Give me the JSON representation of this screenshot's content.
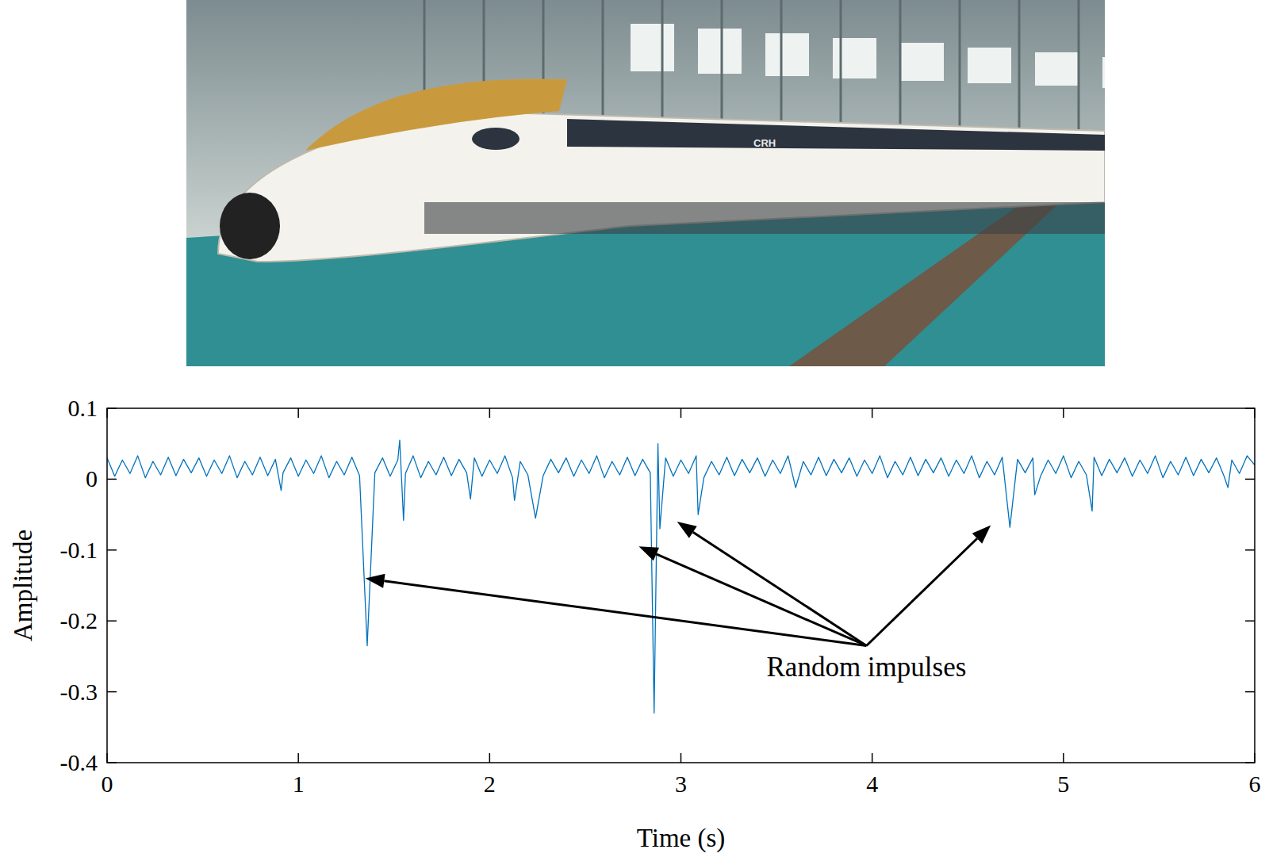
{
  "photo": {
    "logo": "CRH"
  },
  "chart_data": {
    "type": "line",
    "color": "#0072bd",
    "x_label": "Time (s)",
    "y_label": "Amplitude",
    "xlim": [
      0,
      6
    ],
    "ylim": [
      -0.4,
      0.1
    ],
    "xticks": [
      0,
      1,
      2,
      3,
      4,
      5,
      6
    ],
    "yticks": [
      -0.4,
      -0.3,
      -0.2,
      -0.1,
      0,
      0.1
    ],
    "grid": false,
    "annotations": [
      {
        "text": "Random impulses",
        "x": 3.97,
        "y": -0.245,
        "arrow_from": [
          3.97,
          -0.235
        ],
        "arrows": [
          [
            1.35,
            -0.14
          ],
          [
            2.78,
            -0.095
          ],
          [
            2.98,
            -0.06
          ],
          [
            4.62,
            -0.065
          ]
        ]
      }
    ],
    "x": [
      0,
      0.04,
      0.08,
      0.12,
      0.16,
      0.2,
      0.24,
      0.28,
      0.32,
      0.36,
      0.4,
      0.44,
      0.48,
      0.52,
      0.56,
      0.6,
      0.64,
      0.68,
      0.72,
      0.76,
      0.8,
      0.84,
      0.88,
      0.91,
      0.92,
      0.96,
      1.0,
      1.04,
      1.08,
      1.12,
      1.16,
      1.2,
      1.24,
      1.28,
      1.32,
      1.36,
      1.4,
      1.44,
      1.48,
      1.52,
      1.53,
      1.55,
      1.56,
      1.6,
      1.64,
      1.68,
      1.72,
      1.76,
      1.8,
      1.84,
      1.88,
      1.9,
      1.92,
      1.96,
      2.0,
      2.04,
      2.08,
      2.12,
      2.13,
      2.16,
      2.2,
      2.24,
      2.28,
      2.32,
      2.36,
      2.4,
      2.44,
      2.48,
      2.52,
      2.56,
      2.6,
      2.64,
      2.68,
      2.72,
      2.76,
      2.8,
      2.84,
      2.86,
      2.88,
      2.89,
      2.92,
      2.96,
      3.0,
      3.04,
      3.08,
      3.09,
      3.12,
      3.16,
      3.2,
      3.24,
      3.28,
      3.32,
      3.36,
      3.4,
      3.44,
      3.48,
      3.52,
      3.56,
      3.6,
      3.64,
      3.68,
      3.72,
      3.76,
      3.8,
      3.84,
      3.88,
      3.92,
      3.96,
      4.0,
      4.04,
      4.08,
      4.12,
      4.16,
      4.2,
      4.24,
      4.28,
      4.32,
      4.36,
      4.4,
      4.44,
      4.48,
      4.52,
      4.56,
      4.6,
      4.64,
      4.68,
      4.72,
      4.76,
      4.8,
      4.84,
      4.85,
      4.88,
      4.92,
      4.96,
      5.0,
      5.04,
      5.08,
      5.12,
      5.15,
      5.16,
      5.2,
      5.24,
      5.28,
      5.32,
      5.36,
      5.4,
      5.44,
      5.48,
      5.52,
      5.56,
      5.6,
      5.64,
      5.68,
      5.72,
      5.76,
      5.8,
      5.84,
      5.86,
      5.88,
      5.92,
      5.96,
      6.0
    ],
    "values": [
      0.03,
      0.004,
      0.027,
      0.008,
      0.033,
      0.002,
      0.025,
      0.006,
      0.031,
      0.005,
      0.028,
      0.009,
      0.03,
      0.004,
      0.027,
      0.008,
      0.033,
      0.002,
      0.025,
      0.006,
      0.031,
      0.005,
      0.028,
      -0.016,
      0.009,
      0.03,
      0.004,
      0.027,
      0.008,
      0.033,
      0.002,
      0.025,
      0.006,
      0.031,
      0.005,
      -0.235,
      0.009,
      0.03,
      0.004,
      0.027,
      0.055,
      -0.058,
      0.008,
      0.033,
      0.002,
      0.025,
      0.006,
      0.031,
      0.005,
      0.028,
      0.009,
      -0.028,
      0.03,
      0.004,
      0.027,
      0.008,
      0.033,
      0.002,
      -0.03,
      0.025,
      0.006,
      -0.055,
      0.005,
      0.028,
      0.009,
      0.03,
      0.004,
      0.027,
      0.008,
      0.033,
      0.002,
      0.025,
      0.006,
      0.031,
      0.005,
      0.028,
      0.009,
      -0.33,
      0.05,
      -0.07,
      0.03,
      0.004,
      0.027,
      0.008,
      0.033,
      -0.05,
      0.002,
      0.025,
      0.006,
      0.031,
      0.005,
      0.028,
      0.009,
      0.03,
      0.004,
      0.027,
      0.008,
      0.033,
      -0.012,
      0.025,
      0.006,
      0.031,
      0.005,
      0.028,
      0.009,
      0.03,
      0.004,
      0.027,
      0.008,
      0.033,
      0.002,
      0.025,
      0.006,
      0.031,
      0.005,
      0.028,
      0.009,
      0.03,
      0.004,
      0.027,
      0.008,
      0.033,
      0.002,
      0.025,
      0.006,
      0.031,
      -0.068,
      0.028,
      0.009,
      0.03,
      -0.022,
      0.004,
      0.027,
      0.008,
      0.033,
      0.002,
      0.025,
      0.006,
      -0.045,
      0.031,
      0.005,
      0.028,
      0.009,
      0.03,
      0.004,
      0.027,
      0.008,
      0.033,
      0.002,
      0.025,
      0.006,
      0.031,
      0.005,
      0.028,
      0.009,
      0.03,
      0.004,
      -0.012,
      0.027,
      0.008,
      0.033,
      0.02
    ]
  }
}
